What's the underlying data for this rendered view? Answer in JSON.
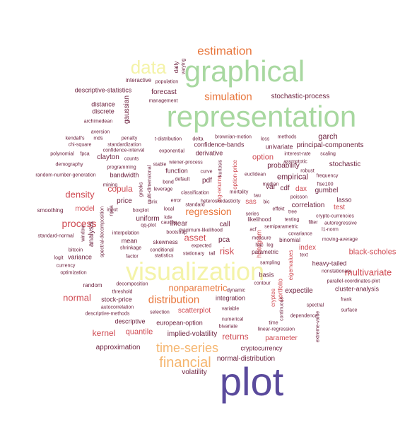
{
  "palette": {
    "purple": "#5a4a9c",
    "green": "#a8d8a0",
    "yellow": "#f4f3a8",
    "orange": "#e8763c",
    "peach": "#f5b56e",
    "red": "#cf4a52",
    "dark": "#6b1f3c"
  },
  "words": [
    {
      "text": "plot",
      "color": "purple"
    },
    {
      "text": "representation",
      "color": "green"
    },
    {
      "text": "graphical",
      "color": "green"
    },
    {
      "text": "visualization",
      "color": "yellow"
    },
    {
      "text": "data",
      "color": "yellow"
    },
    {
      "text": "estimation",
      "color": "orange"
    },
    {
      "text": "financial",
      "color": "peach"
    },
    {
      "text": "time-series",
      "color": "peach"
    },
    {
      "text": "simulation",
      "color": "orange"
    },
    {
      "text": "distribution",
      "color": "orange"
    },
    {
      "text": "regression",
      "color": "orange"
    },
    {
      "text": "nonparametric",
      "color": "orange"
    },
    {
      "text": "multivariate",
      "color": "red"
    },
    {
      "text": "density",
      "color": "red"
    },
    {
      "text": "process",
      "color": "red"
    },
    {
      "text": "normal",
      "color": "red"
    },
    {
      "text": "asset",
      "color": "red"
    },
    {
      "text": "kernel",
      "color": "red"
    },
    {
      "text": "risk",
      "color": "red"
    },
    {
      "text": "returns",
      "color": "red"
    },
    {
      "text": "black-scholes",
      "color": "red"
    },
    {
      "text": "option",
      "color": "red"
    },
    {
      "text": "copula",
      "color": "red"
    },
    {
      "text": "quantile",
      "color": "red"
    },
    {
      "text": "expectile",
      "color": "dark"
    },
    {
      "text": "implied-volatility",
      "color": "dark"
    },
    {
      "text": "approximation",
      "color": "dark"
    },
    {
      "text": "normal-distribution",
      "color": "dark"
    },
    {
      "text": "volatility",
      "color": "dark"
    },
    {
      "text": "parameter",
      "color": "red"
    },
    {
      "text": "stochastic-process",
      "color": "dark"
    },
    {
      "text": "garch",
      "color": "dark"
    },
    {
      "text": "principal-components",
      "color": "dark"
    },
    {
      "text": "stochastic",
      "color": "dark"
    },
    {
      "text": "probability",
      "color": "dark"
    },
    {
      "text": "empirical",
      "color": "dark"
    },
    {
      "text": "correlation",
      "color": "dark"
    },
    {
      "text": "gumbel",
      "color": "dark"
    },
    {
      "text": "test",
      "color": "red"
    },
    {
      "text": "lasso",
      "color": "dark"
    },
    {
      "text": "forecast",
      "color": "dark"
    },
    {
      "text": "gaussian",
      "color": "dark"
    },
    {
      "text": "index",
      "color": "red"
    },
    {
      "text": "sas",
      "color": "red"
    },
    {
      "text": "cdf",
      "color": "dark"
    },
    {
      "text": "var",
      "color": "dark"
    },
    {
      "text": "dax",
      "color": "red"
    },
    {
      "text": "pdf",
      "color": "dark"
    },
    {
      "text": "call",
      "color": "dark"
    },
    {
      "text": "linear",
      "color": "dark"
    },
    {
      "text": "pca",
      "color": "dark"
    },
    {
      "text": "price",
      "color": "dark"
    },
    {
      "text": "model",
      "color": "red"
    },
    {
      "text": "analysis",
      "color": "dark"
    },
    {
      "text": "uniform",
      "color": "dark"
    },
    {
      "text": "stock-price",
      "color": "dark"
    },
    {
      "text": "european-option",
      "color": "dark"
    },
    {
      "text": "descriptive",
      "color": "dark"
    },
    {
      "text": "variance",
      "color": "dark"
    },
    {
      "text": "scatterplot",
      "color": "red"
    },
    {
      "text": "cluster-analysis",
      "color": "dark"
    },
    {
      "text": "heavy-tailed",
      "color": "dark"
    },
    {
      "text": "integration",
      "color": "dark"
    },
    {
      "text": "cryptocurrency",
      "color": "dark"
    },
    {
      "text": "bandwidth",
      "color": "dark"
    },
    {
      "text": "derivative",
      "color": "dark"
    },
    {
      "text": "function",
      "color": "dark"
    },
    {
      "text": "confidence-bands",
      "color": "dark"
    },
    {
      "text": "univariate",
      "color": "dark"
    },
    {
      "text": "histogram",
      "color": "red"
    },
    {
      "text": "portfolio",
      "color": "red"
    },
    {
      "text": "eigenvalues",
      "color": "red"
    },
    {
      "text": "cryptos",
      "color": "red"
    },
    {
      "text": "log-returns",
      "color": "red"
    },
    {
      "text": "option-price",
      "color": "red"
    },
    {
      "text": "descriptive-statistics",
      "color": "dark"
    },
    {
      "text": "distance",
      "color": "dark"
    },
    {
      "text": "discrete",
      "color": "dark"
    },
    {
      "text": "interactive",
      "color": "dark"
    },
    {
      "text": "population",
      "color": "dark"
    },
    {
      "text": "management",
      "color": "dark"
    },
    {
      "text": "daily",
      "color": "dark"
    },
    {
      "text": "varying",
      "color": "dark"
    },
    {
      "text": "archimedean",
      "color": "dark"
    },
    {
      "text": "aversion",
      "color": "dark"
    },
    {
      "text": "kendall's",
      "color": "dark"
    },
    {
      "text": "mds",
      "color": "dark"
    },
    {
      "text": "penalty",
      "color": "dark"
    },
    {
      "text": "chi-square",
      "color": "dark"
    },
    {
      "text": "standardization",
      "color": "dark"
    },
    {
      "text": "t-distribution",
      "color": "dark"
    },
    {
      "text": "delta",
      "color": "dark"
    },
    {
      "text": "brownian-motion",
      "color": "dark"
    },
    {
      "text": "loss",
      "color": "dark"
    },
    {
      "text": "methods",
      "color": "dark"
    },
    {
      "text": "polynomial",
      "color": "dark"
    },
    {
      "text": "fpca",
      "color": "dark"
    },
    {
      "text": "confidence-interval",
      "color": "dark"
    },
    {
      "text": "exponential",
      "color": "dark"
    },
    {
      "text": "demography",
      "color": "dark"
    },
    {
      "text": "clayton",
      "color": "dark"
    },
    {
      "text": "counts",
      "color": "dark"
    },
    {
      "text": "stable",
      "color": "dark"
    },
    {
      "text": "wiener-process",
      "color": "dark"
    },
    {
      "text": "programming",
      "color": "dark"
    },
    {
      "text": "curve",
      "color": "dark"
    },
    {
      "text": "random-number-generation",
      "color": "dark"
    },
    {
      "text": "interest-rate",
      "color": "dark"
    },
    {
      "text": "scaling",
      "color": "dark"
    },
    {
      "text": "asymptotic",
      "color": "dark"
    },
    {
      "text": "euclidean",
      "color": "dark"
    },
    {
      "text": "robust",
      "color": "dark"
    },
    {
      "text": "frequency",
      "color": "dark"
    },
    {
      "text": "ftse100",
      "color": "dark"
    },
    {
      "text": "mining",
      "color": "dark"
    },
    {
      "text": "greeks",
      "color": "dark"
    },
    {
      "text": "default",
      "color": "dark"
    },
    {
      "text": "leverage",
      "color": "dark"
    },
    {
      "text": "classification",
      "color": "dark"
    },
    {
      "text": "mortality",
      "color": "dark"
    },
    {
      "text": "tau",
      "color": "dark"
    },
    {
      "text": "median",
      "color": "dark"
    },
    {
      "text": "error",
      "color": "dark"
    },
    {
      "text": "standard",
      "color": "dark"
    },
    {
      "text": "heteroskedasticity",
      "color": "dark"
    },
    {
      "text": "bic",
      "color": "dark"
    },
    {
      "text": "effekt",
      "color": "dark"
    },
    {
      "text": "crypto-currencies",
      "color": "dark"
    },
    {
      "text": "smoothing",
      "color": "dark"
    },
    {
      "text": "bond",
      "color": "dark"
    },
    {
      "text": "cauchy",
      "color": "dark"
    },
    {
      "text": "kde",
      "color": "dark"
    },
    {
      "text": "local",
      "color": "dark"
    },
    {
      "text": "boxplot",
      "color": "dark"
    },
    {
      "text": "qq-plot",
      "color": "dark"
    },
    {
      "text": "bootstrap",
      "color": "dark"
    },
    {
      "text": "tree",
      "color": "dark"
    },
    {
      "text": "testing",
      "color": "dark"
    },
    {
      "text": "semiparametric",
      "color": "dark"
    },
    {
      "text": "l1-norm",
      "color": "dark"
    },
    {
      "text": "standard-normal",
      "color": "dark"
    },
    {
      "text": "input",
      "color": "dark"
    },
    {
      "text": "maximum-likelihood",
      "color": "dark"
    },
    {
      "text": "likelihood",
      "color": "dark"
    },
    {
      "text": "series",
      "color": "dark"
    },
    {
      "text": "filter",
      "color": "dark"
    },
    {
      "text": "autoregressive",
      "color": "dark"
    },
    {
      "text": "covariance",
      "color": "dark"
    },
    {
      "text": "acf",
      "color": "dark"
    },
    {
      "text": "measure",
      "color": "dark"
    },
    {
      "text": "hac",
      "color": "dark"
    },
    {
      "text": "log",
      "color": "dark"
    },
    {
      "text": "interpolation",
      "color": "dark"
    },
    {
      "text": "mean",
      "color": "dark"
    },
    {
      "text": "skewness",
      "color": "dark"
    },
    {
      "text": "expected",
      "color": "dark"
    },
    {
      "text": "binomial",
      "color": "dark"
    },
    {
      "text": "moving-average",
      "color": "dark"
    },
    {
      "text": "text",
      "color": "dark"
    },
    {
      "text": "shrinkage",
      "color": "dark"
    },
    {
      "text": "conditional",
      "color": "dark"
    },
    {
      "text": "stationary",
      "color": "dark"
    },
    {
      "text": "tail",
      "color": "dark"
    },
    {
      "text": "parametric",
      "color": "dark"
    },
    {
      "text": "bitcoin",
      "color": "dark"
    },
    {
      "text": "factor",
      "color": "dark"
    },
    {
      "text": "statistics",
      "color": "dark"
    },
    {
      "text": "sampling",
      "color": "dark"
    },
    {
      "text": "currency",
      "color": "dark"
    },
    {
      "text": "nonstationary",
      "color": "dark"
    },
    {
      "text": "optimization",
      "color": "dark"
    },
    {
      "text": "basis",
      "color": "dark"
    },
    {
      "text": "parallel-coordinates-plot",
      "color": "dark"
    },
    {
      "text": "random",
      "color": "dark"
    },
    {
      "text": "decomposition",
      "color": "dark"
    },
    {
      "text": "contour",
      "color": "dark"
    },
    {
      "text": "threshold",
      "color": "dark"
    },
    {
      "text": "dynamic",
      "color": "dark"
    },
    {
      "text": "frank",
      "color": "dark"
    },
    {
      "text": "autocorrelation",
      "color": "dark"
    },
    {
      "text": "spectral",
      "color": "dark"
    },
    {
      "text": "descriptive-methods",
      "color": "dark"
    },
    {
      "text": "selection",
      "color": "dark"
    },
    {
      "text": "variable",
      "color": "dark"
    },
    {
      "text": "surface",
      "color": "dark"
    },
    {
      "text": "dependence",
      "color": "dark"
    },
    {
      "text": "numerical",
      "color": "dark"
    },
    {
      "text": "bivariate",
      "color": "dark"
    },
    {
      "text": "time",
      "color": "dark"
    },
    {
      "text": "linear-regression",
      "color": "dark"
    },
    {
      "text": "logit",
      "color": "dark"
    },
    {
      "text": "window",
      "color": "dark"
    },
    {
      "text": "spectral-decomposition",
      "color": "dark"
    },
    {
      "text": "npca",
      "color": "dark"
    },
    {
      "text": "multi-dimensional",
      "color": "dark"
    },
    {
      "text": "poisson",
      "color": "dark"
    },
    {
      "text": "crix",
      "color": "dark"
    },
    {
      "text": "continuous",
      "color": "dark"
    },
    {
      "text": "extreme-value",
      "color": "dark"
    },
    {
      "text": "kurtosis",
      "color": "dark"
    }
  ]
}
